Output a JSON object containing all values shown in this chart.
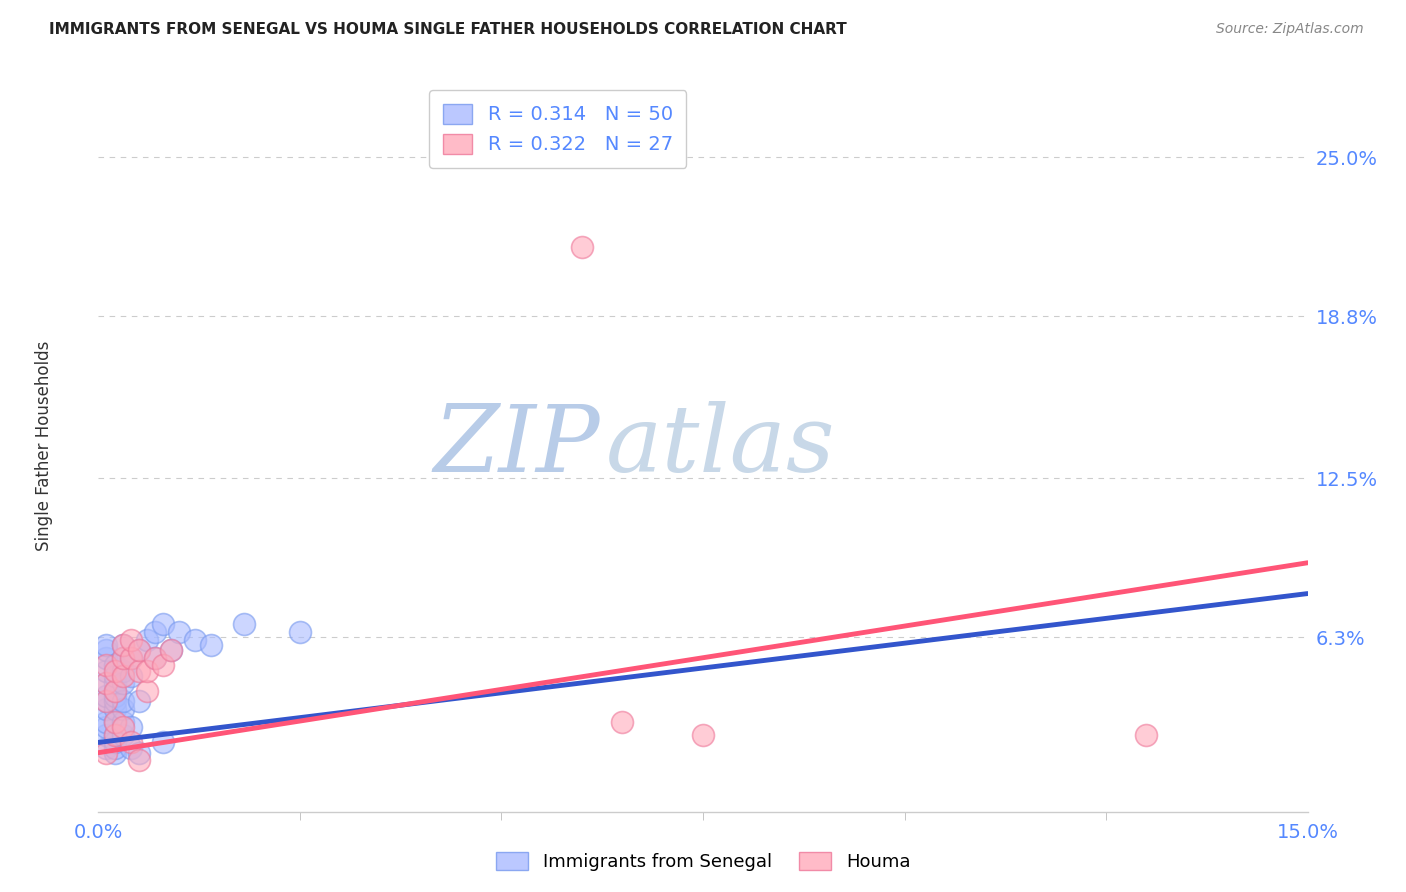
{
  "title": "IMMIGRANTS FROM SENEGAL VS HOUMA SINGLE FATHER HOUSEHOLDS CORRELATION CHART",
  "source": "Source: ZipAtlas.com",
  "ylabel": "Single Father Households",
  "xlim": [
    0.0,
    0.15
  ],
  "ylim": [
    -0.005,
    0.28
  ],
  "ytick_vals": [
    0.063,
    0.125,
    0.188,
    0.25
  ],
  "ytick_labels": [
    "6.3%",
    "12.5%",
    "18.8%",
    "25.0%"
  ],
  "xtick_major": [
    0.0,
    0.15
  ],
  "xtick_major_labels": [
    "0.0%",
    "15.0%"
  ],
  "xtick_minor": [
    0.025,
    0.05,
    0.075,
    0.1,
    0.125
  ],
  "background_color": "#ffffff",
  "grid_color": "#cccccc",
  "watermark_zip": "ZIP",
  "watermark_atlas": "atlas",
  "watermark_color_zip": "#b8cce8",
  "watermark_color_atlas": "#c8d8e8",
  "legend_line1": "R = 0.314   N = 50",
  "legend_line2": "R = 0.322   N = 27",
  "legend_R1": "0.314",
  "legend_N1": "50",
  "legend_R2": "0.322",
  "legend_N2": "27",
  "series1_color": "#aabbff",
  "series1_edge": "#7799ee",
  "series2_color": "#ffaabb",
  "series2_edge": "#ee7799",
  "series1_line_color": "#3355cc",
  "series2_line_color": "#ff5577",
  "series1_label": "Immigrants from Senegal",
  "series2_label": "Houma",
  "title_color": "#222222",
  "axis_label_color": "#333333",
  "tick_color": "#5588ff",
  "source_color": "#888888",
  "series1_points": [
    [
      0.001,
      0.02
    ],
    [
      0.001,
      0.025
    ],
    [
      0.001,
      0.028
    ],
    [
      0.001,
      0.03
    ],
    [
      0.001,
      0.035
    ],
    [
      0.001,
      0.038
    ],
    [
      0.001,
      0.04
    ],
    [
      0.001,
      0.045
    ],
    [
      0.001,
      0.05
    ],
    [
      0.001,
      0.055
    ],
    [
      0.001,
      0.058
    ],
    [
      0.001,
      0.06
    ],
    [
      0.002,
      0.018
    ],
    [
      0.002,
      0.02
    ],
    [
      0.002,
      0.022
    ],
    [
      0.002,
      0.025
    ],
    [
      0.002,
      0.03
    ],
    [
      0.002,
      0.035
    ],
    [
      0.002,
      0.038
    ],
    [
      0.002,
      0.04
    ],
    [
      0.002,
      0.042
    ],
    [
      0.002,
      0.045
    ],
    [
      0.002,
      0.048
    ],
    [
      0.002,
      0.052
    ],
    [
      0.003,
      0.025
    ],
    [
      0.003,
      0.03
    ],
    [
      0.003,
      0.035
    ],
    [
      0.003,
      0.038
    ],
    [
      0.003,
      0.045
    ],
    [
      0.003,
      0.05
    ],
    [
      0.003,
      0.055
    ],
    [
      0.003,
      0.06
    ],
    [
      0.004,
      0.02
    ],
    [
      0.004,
      0.028
    ],
    [
      0.004,
      0.048
    ],
    [
      0.004,
      0.055
    ],
    [
      0.005,
      0.018
    ],
    [
      0.005,
      0.038
    ],
    [
      0.005,
      0.058
    ],
    [
      0.006,
      0.062
    ],
    [
      0.007,
      0.055
    ],
    [
      0.007,
      0.065
    ],
    [
      0.008,
      0.022
    ],
    [
      0.008,
      0.068
    ],
    [
      0.009,
      0.058
    ],
    [
      0.01,
      0.065
    ],
    [
      0.012,
      0.062
    ],
    [
      0.014,
      0.06
    ],
    [
      0.018,
      0.068
    ],
    [
      0.025,
      0.065
    ]
  ],
  "series2_points": [
    [
      0.001,
      0.018
    ],
    [
      0.001,
      0.038
    ],
    [
      0.001,
      0.045
    ],
    [
      0.001,
      0.052
    ],
    [
      0.002,
      0.025
    ],
    [
      0.002,
      0.03
    ],
    [
      0.002,
      0.042
    ],
    [
      0.002,
      0.05
    ],
    [
      0.003,
      0.028
    ],
    [
      0.003,
      0.048
    ],
    [
      0.003,
      0.055
    ],
    [
      0.003,
      0.06
    ],
    [
      0.004,
      0.022
    ],
    [
      0.004,
      0.055
    ],
    [
      0.004,
      0.062
    ],
    [
      0.005,
      0.015
    ],
    [
      0.005,
      0.05
    ],
    [
      0.005,
      0.058
    ],
    [
      0.006,
      0.042
    ],
    [
      0.006,
      0.05
    ],
    [
      0.007,
      0.055
    ],
    [
      0.008,
      0.052
    ],
    [
      0.009,
      0.058
    ],
    [
      0.06,
      0.215
    ],
    [
      0.065,
      0.03
    ],
    [
      0.075,
      0.025
    ],
    [
      0.13,
      0.025
    ]
  ],
  "series1_line": [
    [
      0.0,
      0.022
    ],
    [
      0.15,
      0.08
    ]
  ],
  "series2_line": [
    [
      0.0,
      0.018
    ],
    [
      0.15,
      0.092
    ]
  ]
}
